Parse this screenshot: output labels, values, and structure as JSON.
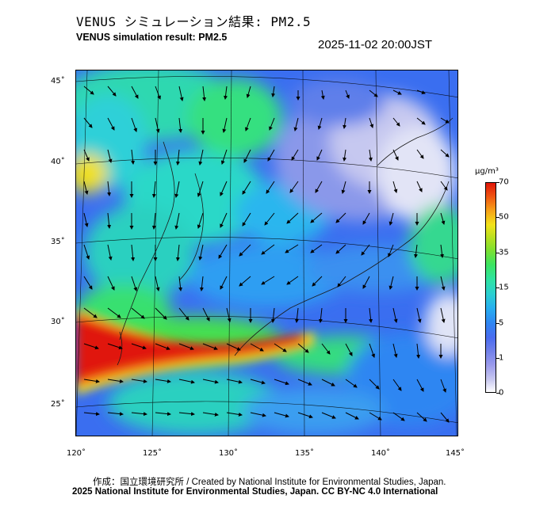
{
  "header": {
    "title_jp": "VENUS シミュレーション結果: PM2.5",
    "title_en": "VENUS simulation result: PM2.5",
    "timestamp": "2025-11-02 20:00JST"
  },
  "map": {
    "lat_ticks": [
      "45˚",
      "40˚",
      "35˚",
      "30˚",
      "25˚"
    ],
    "lon_ticks": [
      "120˚",
      "125˚",
      "130˚",
      "135˚",
      "140˚",
      "145˚"
    ]
  },
  "legend": {
    "unit": "μg/m³",
    "ticks": [
      "70",
      "50",
      "35",
      "15",
      "5",
      "1",
      "0"
    ]
  },
  "footer": {
    "credit": "作成：国立環境研究所 / Created by National Institute for Environmental Studies, Japan.",
    "license": "2025 National Institute for Environmental Studies, Japan. CC BY-NC 4.0 International"
  }
}
